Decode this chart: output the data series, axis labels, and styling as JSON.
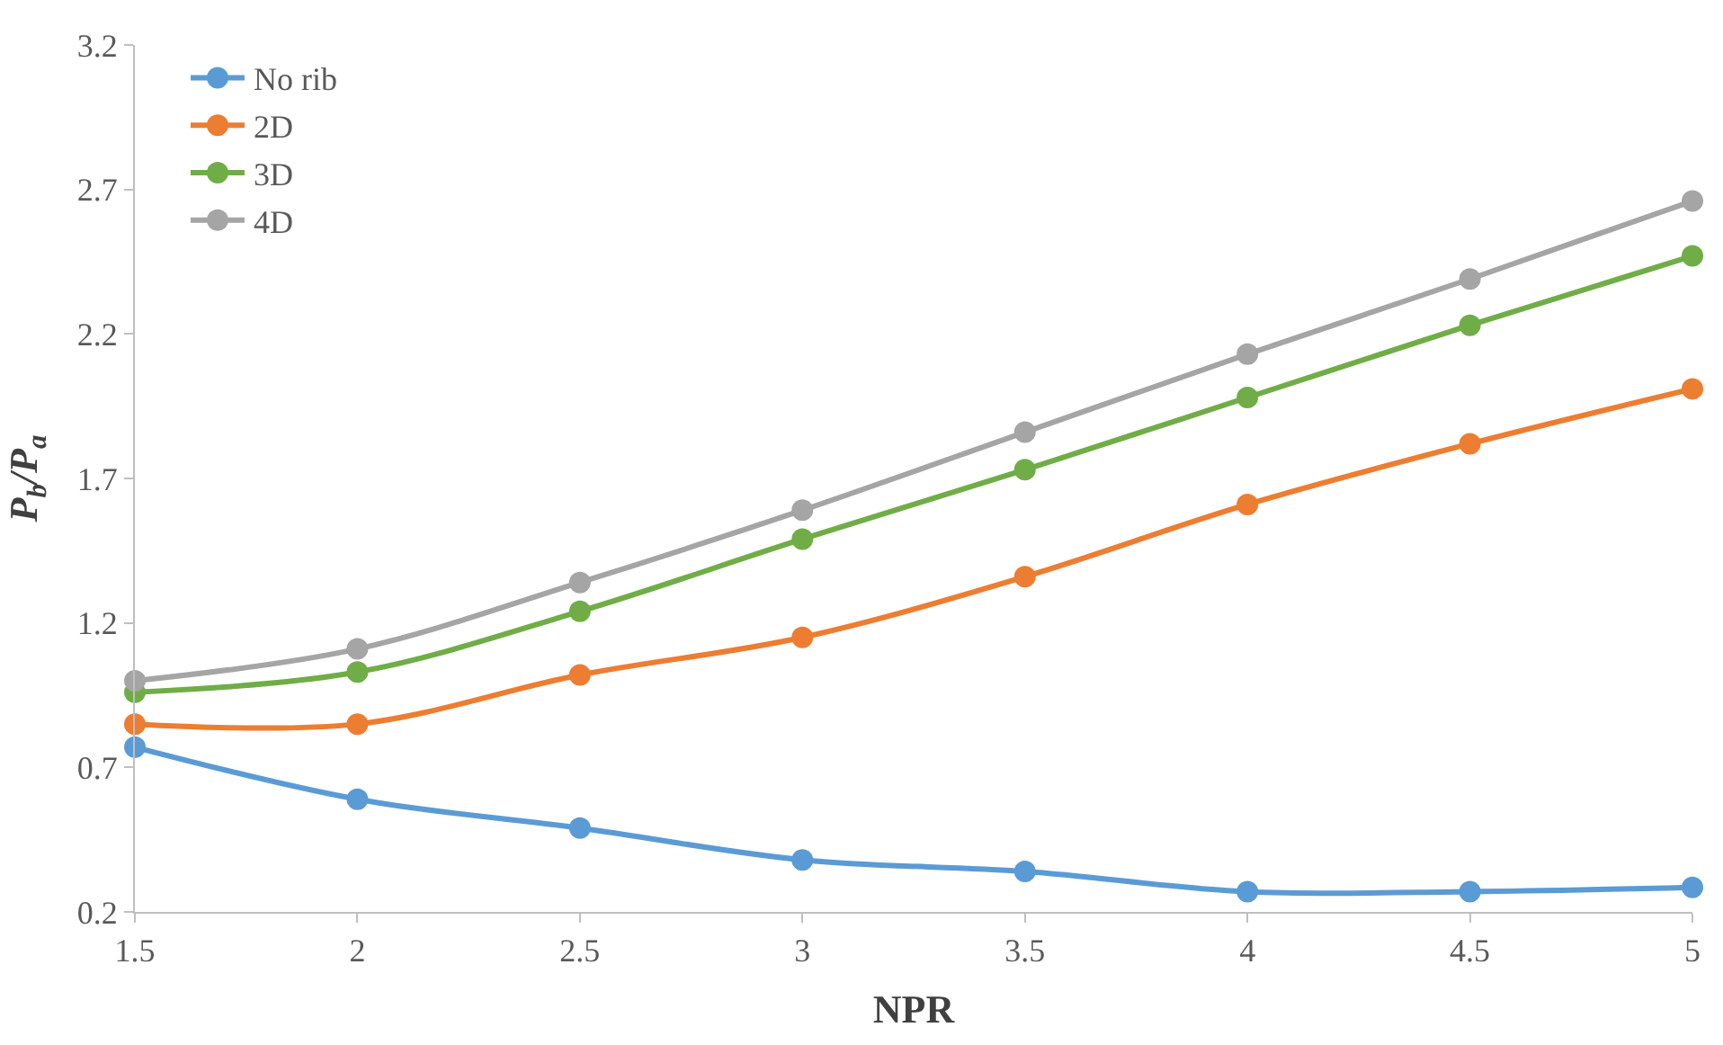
{
  "chart_data": {
    "type": "line",
    "xlabel": "NPR",
    "ylabel": "P$_{b}$/P$_{a}$",
    "x": [
      1.5,
      2,
      2.5,
      3,
      3.5,
      4,
      4.5,
      5
    ],
    "series": [
      {
        "name": "No rib",
        "color": "#5b9bd5",
        "values": [
          0.77,
          0.59,
          0.49,
          0.38,
          0.34,
          0.27,
          0.27,
          0.285
        ]
      },
      {
        "name": "2D",
        "color": "#ed7d31",
        "values": [
          0.85,
          0.85,
          1.02,
          1.15,
          1.36,
          1.61,
          1.82,
          2.01
        ]
      },
      {
        "name": "3D",
        "color": "#70ad47",
        "values": [
          0.96,
          1.03,
          1.24,
          1.49,
          1.73,
          1.98,
          2.23,
          2.47
        ]
      },
      {
        "name": "4D",
        "color": "#a5a5a5",
        "values": [
          1.0,
          1.11,
          1.34,
          1.59,
          1.86,
          2.13,
          2.39,
          2.66
        ]
      }
    ],
    "xlim": [
      1.5,
      5
    ],
    "xticks": [
      1.5,
      2,
      2.5,
      3,
      3.5,
      4,
      4.5,
      5
    ],
    "ylim": [
      0.2,
      3.2
    ],
    "yticks": [
      0.2,
      0.7,
      1.2,
      1.7,
      2.2,
      2.7,
      3.2
    ],
    "legend": "top left",
    "marker": "circle",
    "line_style": "solid"
  }
}
